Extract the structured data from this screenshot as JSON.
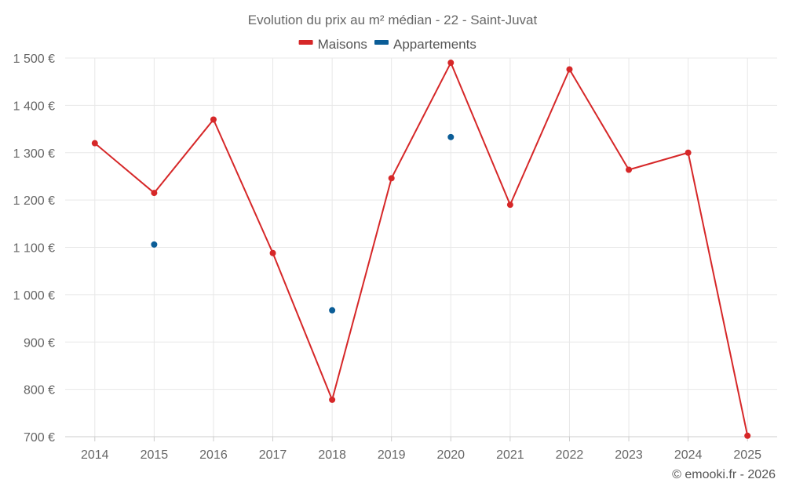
{
  "chart_data": {
    "type": "line",
    "title": "Evolution du prix au m² médian - 22 - Saint-Juvat",
    "categories": [
      "2014",
      "2015",
      "2016",
      "2017",
      "2018",
      "2019",
      "2020",
      "2021",
      "2022",
      "2023",
      "2024",
      "2025"
    ],
    "series": [
      {
        "name": "Maisons",
        "color": "#d62728",
        "values": [
          1320,
          1215,
          1370,
          1088,
          778,
          1246,
          1490,
          1190,
          1476,
          1264,
          1300,
          702
        ]
      },
      {
        "name": "Appartements",
        "color": "#0b5d97",
        "values": [
          null,
          1106,
          null,
          null,
          967,
          null,
          1333,
          null,
          null,
          null,
          null,
          null
        ]
      }
    ],
    "ylim": [
      700,
      1500
    ],
    "yticks": [
      700,
      800,
      900,
      1000,
      1100,
      1200,
      1300,
      1400,
      1500
    ],
    "ytick_labels": [
      "700 €",
      "800 €",
      "900 €",
      "1 000 €",
      "1 100 €",
      "1 200 €",
      "1 300 €",
      "1 400 €",
      "1 500 €"
    ],
    "xlabel": "",
    "ylabel": "",
    "grid": true,
    "legend_position": "top-center"
  },
  "credit": "© emooki.fr - 2026"
}
